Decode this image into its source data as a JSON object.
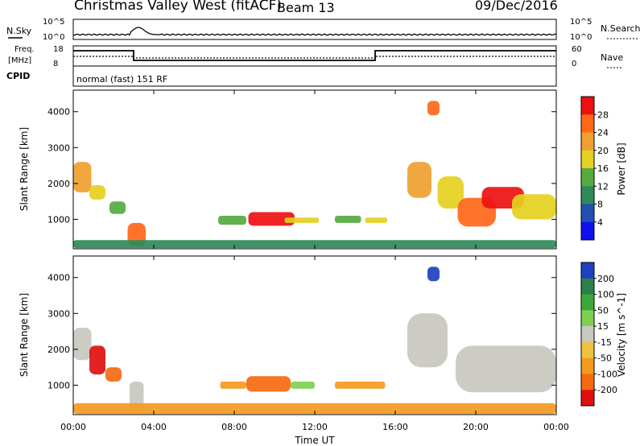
{
  "header": {
    "radar": "Christmas Valley West (fitACF)",
    "beam": "Beam 13",
    "date": "09/Dec/2016"
  },
  "noise_panel": {
    "left_label": "N.Sky",
    "right_label": "N.Search",
    "left_ticks": [
      "10^5",
      "10^0"
    ],
    "right_ticks": [
      "10^5",
      "10^0"
    ]
  },
  "freq_panel": {
    "left_label_1": "Freq.",
    "left_label_2": "[MHz]",
    "left_ticks": [
      "18",
      "8"
    ],
    "right_label": "Nave",
    "right_ticks": [
      "60",
      "0"
    ]
  },
  "cpid_panel": {
    "label": "CPID",
    "mode_text": "normal (fast) 151 RF"
  },
  "colors": {
    "power_scale": [
      "#1010ee",
      "#2050b0",
      "#2f8a5a",
      "#55aa40",
      "#e6d020",
      "#f0a030",
      "#ff6818",
      "#ee1010"
    ],
    "velocity_scale": [
      "#2040c0",
      "#2e7f4c",
      "#3aa83a",
      "#7fd050",
      "#c8c8c0",
      "#f0c040",
      "#f49a20",
      "#f56a10",
      "#e01010"
    ]
  },
  "chart_data": [
    {
      "type": "heatmap",
      "title": "Power",
      "xlabel": "",
      "ylabel": "Slant Range [km]",
      "x_ticks": [
        "00:00",
        "04:00",
        "08:00",
        "12:00",
        "16:00",
        "20:00",
        "00:00"
      ],
      "xlim_hours": [
        0,
        24
      ],
      "y_ticks": [
        "1000",
        "2000",
        "3000",
        "4000"
      ],
      "ylim_km": [
        180,
        4600
      ],
      "colorbar_label": "Power [dB]",
      "colorbar_ticks": [
        "4",
        "8",
        "12",
        "16",
        "20",
        "24",
        "28"
      ],
      "colorbar_range": [
        0,
        32
      ],
      "echo_regions": [
        {
          "start_h": 0.0,
          "end_h": 0.9,
          "min_km": 1750,
          "max_km": 2600,
          "level": 5
        },
        {
          "start_h": 0.8,
          "end_h": 1.6,
          "min_km": 1550,
          "max_km": 1950,
          "level": 4
        },
        {
          "start_h": 1.8,
          "end_h": 2.6,
          "min_km": 1150,
          "max_km": 1500,
          "level": 3
        },
        {
          "start_h": 2.7,
          "end_h": 3.6,
          "min_km": 250,
          "max_km": 900,
          "level": 6
        },
        {
          "start_h": 7.2,
          "end_h": 8.6,
          "min_km": 850,
          "max_km": 1100,
          "level": 3
        },
        {
          "start_h": 8.7,
          "end_h": 11.0,
          "min_km": 820,
          "max_km": 1200,
          "level": 7
        },
        {
          "start_h": 10.5,
          "end_h": 12.2,
          "min_km": 900,
          "max_km": 1050,
          "level": 4
        },
        {
          "start_h": 13.0,
          "end_h": 14.3,
          "min_km": 900,
          "max_km": 1100,
          "level": 3
        },
        {
          "start_h": 14.5,
          "end_h": 15.6,
          "min_km": 900,
          "max_km": 1050,
          "level": 4
        },
        {
          "start_h": 16.6,
          "end_h": 17.8,
          "min_km": 1600,
          "max_km": 2600,
          "level": 5
        },
        {
          "start_h": 17.6,
          "end_h": 18.2,
          "min_km": 3900,
          "max_km": 4300,
          "level": 6
        },
        {
          "start_h": 18.1,
          "end_h": 19.4,
          "min_km": 1300,
          "max_km": 2200,
          "level": 4
        },
        {
          "start_h": 19.1,
          "end_h": 21.0,
          "min_km": 800,
          "max_km": 1600,
          "level": 6
        },
        {
          "start_h": 20.3,
          "end_h": 22.4,
          "min_km": 1300,
          "max_km": 1900,
          "level": 7
        },
        {
          "start_h": 21.8,
          "end_h": 24.0,
          "min_km": 1000,
          "max_km": 1700,
          "level": 4
        },
        {
          "start_h": 0.0,
          "end_h": 24.0,
          "min_km": 200,
          "max_km": 420,
          "level": 2
        }
      ]
    },
    {
      "type": "heatmap",
      "title": "Velocity",
      "xlabel": "Time UT",
      "ylabel": "Slant Range [km]",
      "x_ticks": [
        "00:00",
        "04:00",
        "08:00",
        "12:00",
        "16:00",
        "20:00",
        "00:00"
      ],
      "xlim_hours": [
        0,
        24
      ],
      "y_ticks": [
        "1000",
        "2000",
        "3000",
        "4000"
      ],
      "ylim_km": [
        180,
        4600
      ],
      "colorbar_label": "Velocity [m s^-1]",
      "colorbar_ticks": [
        "200",
        "100",
        "50",
        "15",
        "-15",
        "-50",
        "-100",
        "-200"
      ],
      "colorbar_range": [
        -250,
        250
      ],
      "echo_regions": [
        {
          "start_h": 0.0,
          "end_h": 0.9,
          "min_km": 1700,
          "max_km": 2600,
          "level": 4
        },
        {
          "start_h": 0.8,
          "end_h": 1.6,
          "min_km": 1300,
          "max_km": 2100,
          "level": 8
        },
        {
          "start_h": 1.6,
          "end_h": 2.4,
          "min_km": 1100,
          "max_km": 1500,
          "level": 7
        },
        {
          "start_h": 2.8,
          "end_h": 3.5,
          "min_km": 300,
          "max_km": 1100,
          "level": 4
        },
        {
          "start_h": 7.3,
          "end_h": 8.6,
          "min_km": 900,
          "max_km": 1100,
          "level": 6
        },
        {
          "start_h": 8.6,
          "end_h": 10.8,
          "min_km": 820,
          "max_km": 1250,
          "level": 7
        },
        {
          "start_h": 10.8,
          "end_h": 12.0,
          "min_km": 900,
          "max_km": 1100,
          "level": 3
        },
        {
          "start_h": 13.0,
          "end_h": 15.5,
          "min_km": 900,
          "max_km": 1100,
          "level": 6
        },
        {
          "start_h": 16.6,
          "end_h": 18.6,
          "min_km": 1500,
          "max_km": 3000,
          "level": 4
        },
        {
          "start_h": 17.6,
          "end_h": 18.2,
          "min_km": 3900,
          "max_km": 4300,
          "level": 0
        },
        {
          "start_h": 19.0,
          "end_h": 24.0,
          "min_km": 800,
          "max_km": 2100,
          "level": 4
        },
        {
          "start_h": 0.0,
          "end_h": 24.0,
          "min_km": 200,
          "max_km": 500,
          "level": 6
        }
      ]
    }
  ]
}
